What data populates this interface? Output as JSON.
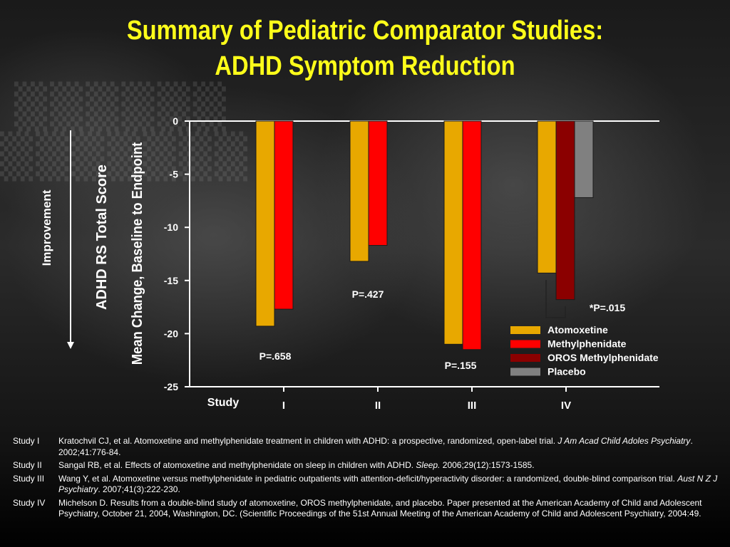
{
  "title": {
    "line1": "Summary of Pediatric Comparator Studies:",
    "line2": "ADHD Symptom Reduction"
  },
  "colors": {
    "title": "#ffff1a",
    "atomoxetine": "#e8a800",
    "methylphenidate": "#ff0000",
    "oros_methylphenidate": "#8b0000",
    "placebo": "#808080"
  },
  "chart_data": {
    "type": "bar",
    "ylabel_line1": "ADHD RS Total Score",
    "ylabel_line2": "Mean Change, Baseline to Endpoint",
    "arrow_label": "Improvement",
    "xlabel": "Study",
    "ylim": [
      -25,
      0
    ],
    "yticks": [
      0,
      -5,
      -10,
      -15,
      -20,
      -25
    ],
    "categories": [
      "I",
      "II",
      "III",
      "IV"
    ],
    "series": [
      {
        "name": "Atomoxetine",
        "values": [
          -19.3,
          -13.2,
          -21.0,
          -14.3
        ]
      },
      {
        "name": "Methylphenidate",
        "values": [
          -17.7,
          -11.7,
          -21.5,
          null
        ]
      },
      {
        "name": "OROS Methylphenidate",
        "values": [
          null,
          null,
          null,
          -16.8
        ]
      },
      {
        "name": "Placebo",
        "values": [
          null,
          null,
          null,
          -7.2
        ]
      }
    ],
    "annotations": [
      "P=.658",
      "P=.427",
      "P=.155",
      "*P=.015"
    ],
    "legend_position": "bottom-right"
  },
  "references": [
    {
      "study": "Study I",
      "text": "Kratochvil CJ, et al. Atomoxetine and methylphenidate treatment in children with ADHD: a prospective, randomized, open-label trial. ",
      "journal": "J Am Acad Child Adoles Psychiatry",
      "tail": ". 2002;41:776-84."
    },
    {
      "study": "Study II",
      "text": "Sangal RB, et al. Effects of atomoxetine and methylphenidate on sleep in children with ADHD. ",
      "journal": "Sleep.",
      "tail": " 2006;29(12):1573-1585."
    },
    {
      "study": "Study III",
      "text": "Wang Y, et al. Atomoxetine versus methylphenidate in pediatric outpatients with attention-deficit/hyperactivity disorder: a randomized, double-blind comparison trial. ",
      "journal": "Aust N Z J Psychiatry",
      "tail": ". 2007;41(3):222-230."
    },
    {
      "study": "Study IV",
      "text": "Michelson D. Results from a double-blind study of atomoxetine, OROS methylphenidate, and placebo.  Paper presented at the American Academy of Child and Adolescent Psychiatry, October 21, 2004, Washington, DC. (Scientific Proceedings of the 51st Annual Meeting of the American Academy of Child and Adolescent Psychiatry, 2004:49.",
      "journal": "",
      "tail": ""
    }
  ]
}
